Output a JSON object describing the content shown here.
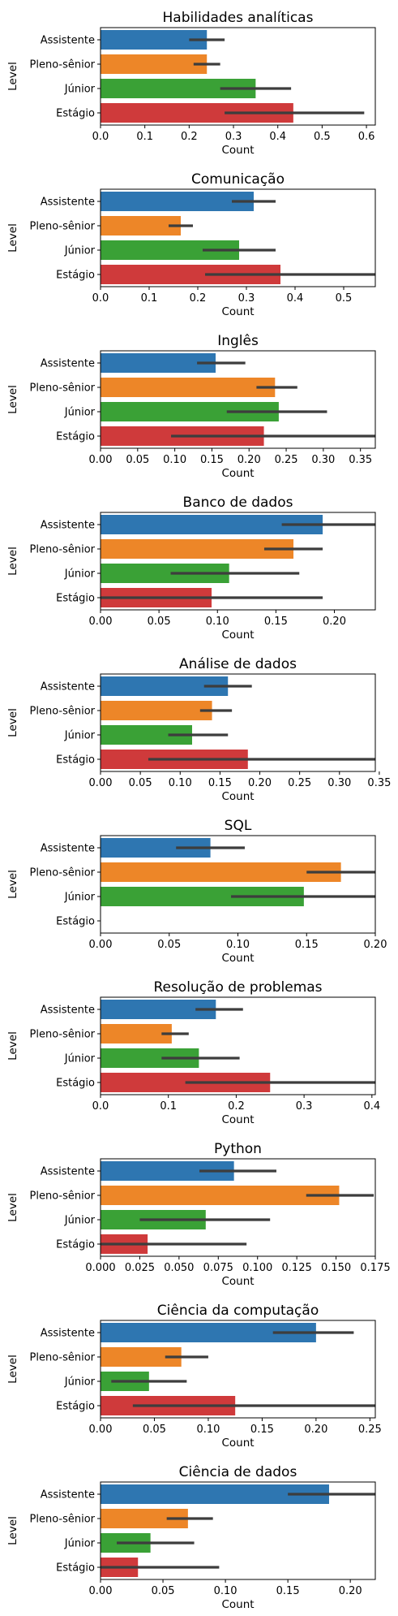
{
  "chart_data": [
    {
      "type": "bar",
      "orientation": "horizontal",
      "title": "Habilidades analíticas",
      "xlabel": "Count",
      "ylabel": "Level",
      "categories": [
        "Assistente",
        "Pleno-sênior",
        "Júnior",
        "Estágio"
      ],
      "values": [
        0.24,
        0.24,
        0.35,
        0.435
      ],
      "error_low": [
        0.2,
        0.21,
        0.27,
        0.28
      ],
      "error_high": [
        0.28,
        0.27,
        0.43,
        0.595
      ],
      "xlim": [
        0,
        0.62
      ],
      "xticks": [
        0,
        0.1,
        0.2,
        0.3,
        0.4,
        0.5,
        0.6
      ],
      "xtick_labels": [
        "0.0",
        "0.1",
        "0.2",
        "0.3",
        "0.4",
        "0.5",
        "0.6"
      ]
    },
    {
      "type": "bar",
      "orientation": "horizontal",
      "title": "Comunicação",
      "xlabel": "Count",
      "ylabel": "Level",
      "categories": [
        "Assistente",
        "Pleno-sênior",
        "Júnior",
        "Estágio"
      ],
      "values": [
        0.315,
        0.165,
        0.285,
        0.37
      ],
      "error_low": [
        0.27,
        0.14,
        0.21,
        0.215
      ],
      "error_high": [
        0.36,
        0.19,
        0.36,
        0.565
      ],
      "xlim": [
        0,
        0.565
      ],
      "xticks": [
        0,
        0.1,
        0.2,
        0.3,
        0.4,
        0.5
      ],
      "xtick_labels": [
        "0.0",
        "0.1",
        "0.2",
        "0.3",
        "0.4",
        "0.5"
      ]
    },
    {
      "type": "bar",
      "orientation": "horizontal",
      "title": "Inglês",
      "xlabel": "Count",
      "ylabel": "Level",
      "categories": [
        "Assistente",
        "Pleno-sênior",
        "Júnior",
        "Estágio"
      ],
      "values": [
        0.155,
        0.235,
        0.24,
        0.22
      ],
      "error_low": [
        0.13,
        0.21,
        0.17,
        0.095
      ],
      "error_high": [
        0.195,
        0.265,
        0.305,
        0.37
      ],
      "xlim": [
        0,
        0.37
      ],
      "xticks": [
        0,
        0.05,
        0.1,
        0.15,
        0.2,
        0.25,
        0.3,
        0.35
      ],
      "xtick_labels": [
        "0.00",
        "0.05",
        "0.10",
        "0.15",
        "0.20",
        "0.25",
        "0.30",
        "0.35"
      ]
    },
    {
      "type": "bar",
      "orientation": "horizontal",
      "title": "Banco de dados",
      "xlabel": "Count",
      "ylabel": "Level",
      "categories": [
        "Assistente",
        "Pleno-sênior",
        "Júnior",
        "Estágio"
      ],
      "values": [
        0.19,
        0.165,
        0.11,
        0.095
      ],
      "error_low": [
        0.155,
        0.14,
        0.06,
        0.0
      ],
      "error_high": [
        0.235,
        0.19,
        0.17,
        0.19
      ],
      "xlim": [
        0,
        0.235
      ],
      "xticks": [
        0,
        0.05,
        0.1,
        0.15,
        0.2
      ],
      "xtick_labels": [
        "0.00",
        "0.05",
        "0.10",
        "0.15",
        "0.20"
      ]
    },
    {
      "type": "bar",
      "orientation": "horizontal",
      "title": "Análise de dados",
      "xlabel": "Count",
      "ylabel": "Level",
      "categories": [
        "Assistente",
        "Pleno-sênior",
        "Júnior",
        "Estágio"
      ],
      "values": [
        0.16,
        0.14,
        0.115,
        0.185
      ],
      "error_low": [
        0.13,
        0.125,
        0.085,
        0.06
      ],
      "error_high": [
        0.19,
        0.165,
        0.16,
        0.345
      ],
      "xlim": [
        0,
        0.345
      ],
      "xticks": [
        0,
        0.05,
        0.1,
        0.15,
        0.2,
        0.25,
        0.3,
        0.35
      ],
      "xtick_labels": [
        "0.00",
        "0.05",
        "0.10",
        "0.15",
        "0.20",
        "0.25",
        "0.30",
        "0.35"
      ]
    },
    {
      "type": "bar",
      "orientation": "horizontal",
      "title": "SQL",
      "xlabel": "Count",
      "ylabel": "Level",
      "categories": [
        "Assistente",
        "Pleno-sênior",
        "Júnior",
        "Estágio"
      ],
      "values": [
        0.08,
        0.175,
        0.148,
        null
      ],
      "error_low": [
        0.055,
        0.15,
        0.095,
        null
      ],
      "error_high": [
        0.105,
        0.2,
        0.2,
        null
      ],
      "xlim": [
        0,
        0.2
      ],
      "xticks": [
        0,
        0.05,
        0.1,
        0.15,
        0.2
      ],
      "xtick_labels": [
        "0.00",
        "0.05",
        "0.10",
        "0.15",
        "0.20"
      ]
    },
    {
      "type": "bar",
      "orientation": "horizontal",
      "title": "Resolução de problemas",
      "xlabel": "Count",
      "ylabel": "Level",
      "categories": [
        "Assistente",
        "Pleno-sênior",
        "Júnior",
        "Estágio"
      ],
      "values": [
        0.17,
        0.105,
        0.145,
        0.25
      ],
      "error_low": [
        0.14,
        0.09,
        0.09,
        0.125
      ],
      "error_high": [
        0.21,
        0.13,
        0.205,
        0.405
      ],
      "xlim": [
        0,
        0.405
      ],
      "xticks": [
        0,
        0.1,
        0.2,
        0.3,
        0.4
      ],
      "xtick_labels": [
        "0.0",
        "0.1",
        "0.2",
        "0.3",
        "0.4"
      ]
    },
    {
      "type": "bar",
      "orientation": "horizontal",
      "title": "Python",
      "xlabel": "Count",
      "ylabel": "Level",
      "categories": [
        "Assistente",
        "Pleno-sênior",
        "Júnior",
        "Estágio"
      ],
      "values": [
        0.085,
        0.152,
        0.067,
        0.03
      ],
      "error_low": [
        0.063,
        0.131,
        0.025,
        0.0
      ],
      "error_high": [
        0.112,
        0.174,
        0.108,
        0.093
      ],
      "xlim": [
        0,
        0.175
      ],
      "xticks": [
        0,
        0.025,
        0.05,
        0.075,
        0.1,
        0.125,
        0.15,
        0.175
      ],
      "xtick_labels": [
        "0.000",
        "0.025",
        "0.050",
        "0.075",
        "0.100",
        "0.125",
        "0.150",
        "0.175"
      ]
    },
    {
      "type": "bar",
      "orientation": "horizontal",
      "title": "Ciência da computação",
      "xlabel": "Count",
      "ylabel": "Level",
      "categories": [
        "Assistente",
        "Pleno-sênior",
        "Júnior",
        "Estágio"
      ],
      "values": [
        0.2,
        0.075,
        0.045,
        0.125
      ],
      "error_low": [
        0.16,
        0.06,
        0.01,
        0.03
      ],
      "error_high": [
        0.235,
        0.1,
        0.08,
        0.255
      ],
      "xlim": [
        0,
        0.255
      ],
      "xticks": [
        0,
        0.05,
        0.1,
        0.15,
        0.2,
        0.25
      ],
      "xtick_labels": [
        "0.00",
        "0.05",
        "0.10",
        "0.15",
        "0.20",
        "0.25"
      ]
    },
    {
      "type": "bar",
      "orientation": "horizontal",
      "title": "Ciência de dados",
      "xlabel": "Count",
      "ylabel": "Level",
      "categories": [
        "Assistente",
        "Pleno-sênior",
        "Júnior",
        "Estágio"
      ],
      "values": [
        0.183,
        0.07,
        0.04,
        0.03
      ],
      "error_low": [
        0.15,
        0.053,
        0.013,
        0.0
      ],
      "error_high": [
        0.22,
        0.09,
        0.075,
        0.095
      ],
      "xlim": [
        0,
        0.22
      ],
      "xticks": [
        0,
        0.05,
        0.1,
        0.15,
        0.2
      ],
      "xtick_labels": [
        "0.00",
        "0.05",
        "0.10",
        "0.15",
        "0.20"
      ]
    }
  ],
  "colors": {
    "Assistente": "#2e76b1",
    "Pleno-sênior": "#ed8628",
    "Júnior": "#3aa136",
    "Estágio": "#cf3a3b",
    "error_bar": "#3d3d3d",
    "axis": "#000000"
  }
}
